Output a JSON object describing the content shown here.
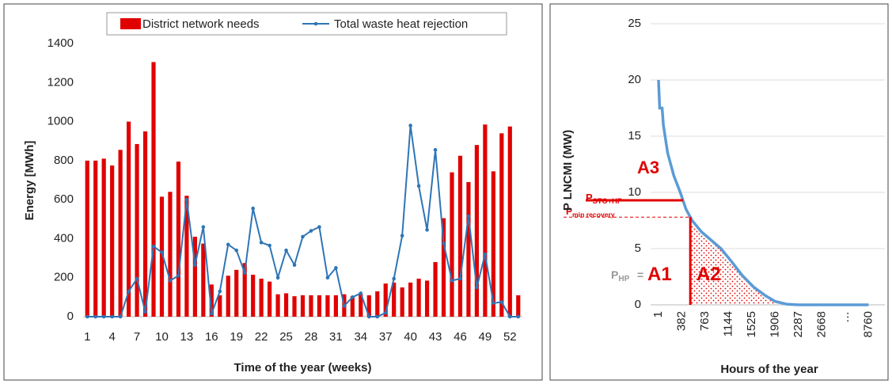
{
  "chart_data": [
    {
      "type": "bar_line",
      "y_label": "Energy [MWh]",
      "x_label": "Time of the year (weeks)",
      "categories": [
        1,
        null,
        null,
        4,
        null,
        null,
        7,
        null,
        null,
        10,
        null,
        null,
        13,
        null,
        null,
        16,
        null,
        null,
        19,
        null,
        null,
        22,
        null,
        null,
        25,
        null,
        null,
        28,
        null,
        null,
        31,
        null,
        null,
        34,
        null,
        null,
        37,
        null,
        null,
        40,
        null,
        null,
        43,
        null,
        null,
        46,
        null,
        null,
        49,
        null,
        null,
        52,
        null
      ],
      "ylim": [
        0,
        1400
      ],
      "yticks": [
        0,
        200,
        400,
        600,
        800,
        1000,
        1200,
        1400
      ],
      "grid": false,
      "series": [
        {
          "name": "District network needs",
          "kind": "bar",
          "color": "#e00000",
          "values": [
            800,
            800,
            810,
            775,
            855,
            1000,
            885,
            950,
            1305,
            615,
            640,
            795,
            620,
            410,
            375,
            165,
            110,
            210,
            240,
            275,
            215,
            195,
            180,
            115,
            120,
            105,
            110,
            110,
            110,
            110,
            110,
            115,
            105,
            115,
            110,
            130,
            170,
            175,
            150,
            175,
            195,
            185,
            280,
            505,
            740,
            825,
            690,
            880,
            985,
            745,
            940,
            975,
            110
          ]
        },
        {
          "name": "Total waste heat rejection",
          "kind": "line",
          "color": "#2e75b6",
          "values": [
            0,
            0,
            0,
            0,
            0,
            130,
            195,
            25,
            360,
            330,
            185,
            210,
            600,
            265,
            460,
            15,
            130,
            370,
            340,
            225,
            555,
            380,
            365,
            200,
            340,
            265,
            410,
            440,
            460,
            200,
            250,
            55,
            100,
            120,
            0,
            0,
            20,
            195,
            415,
            980,
            670,
            445,
            855,
            375,
            185,
            195,
            515,
            150,
            320,
            70,
            75,
            0,
            0
          ]
        }
      ]
    },
    {
      "type": "line",
      "y_label": "P LNCMI (MW)",
      "x_label": "Hours of the year",
      "x": [
        1,
        20,
        60,
        80,
        150,
        250,
        356,
        450,
        550,
        700,
        850,
        1020,
        1200,
        1370,
        1550,
        1750,
        1906,
        2100,
        2287,
        8760
      ],
      "xlim": [
        1,
        8760
      ],
      "xticks": [
        1,
        382,
        763,
        1144,
        1525,
        1906,
        2287,
        2668,
        8760
      ],
      "x_break_label": "…",
      "ylim": [
        0,
        25
      ],
      "yticks": [
        0,
        5,
        10,
        15,
        20,
        25
      ],
      "grid": true,
      "series": [
        {
          "color": "#5b9bd5",
          "values": [
            20,
            17.5,
            17.5,
            16,
            13.5,
            11.5,
            10,
            8.5,
            7.5,
            6.5,
            5.8,
            5,
            3.8,
            2.6,
            1.6,
            0.8,
            0.3,
            0.05,
            0,
            0
          ]
        }
      ],
      "reference_lines": {
        "p_sto_hp": 9.3,
        "p_min_recovery": 7.8,
        "recovery_start_hours": 520
      },
      "annotations": [
        {
          "text": "A3"
        },
        {
          "text": "P",
          "sub": "STO+HP"
        },
        {
          "text": "P",
          "sub": "min recovery"
        },
        {
          "text": "P",
          "sub": "HP"
        },
        {
          "text": "="
        },
        {
          "text": "A1"
        },
        {
          "text": "A2"
        }
      ]
    }
  ]
}
